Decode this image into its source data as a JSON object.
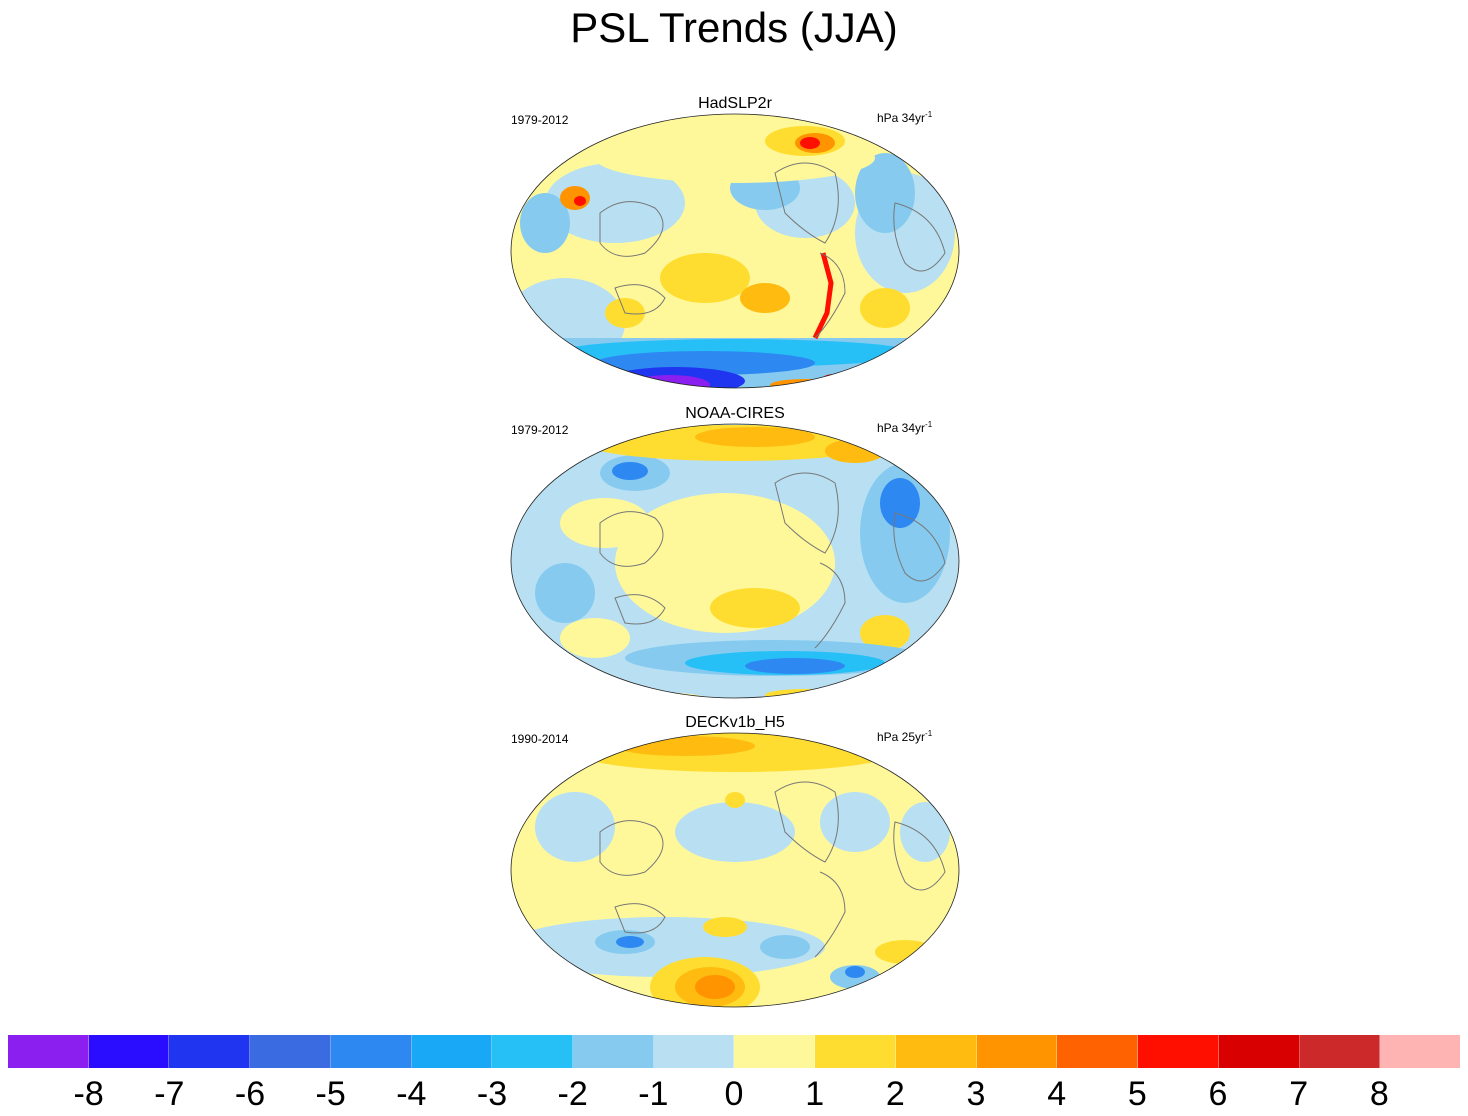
{
  "title": "PSL Trends (JJA)",
  "panels": [
    {
      "name": "HadSLP2r",
      "period": "1979-2012",
      "units_prefix": "hPa 34yr",
      "units_exp": "-1"
    },
    {
      "name": "NOAA-CIRES",
      "period": "1979-2012",
      "units_prefix": "hPa 34yr",
      "units_exp": "-1"
    },
    {
      "name": "DECKv1b_H5",
      "period": "1990-2014",
      "units_prefix": "hPa 25yr",
      "units_exp": "-1"
    }
  ],
  "colorbar": {
    "colors": [
      "#8a1ff0",
      "#2a0dff",
      "#1f35f0",
      "#3a6be0",
      "#2e88f2",
      "#18a8f6",
      "#26c0f7",
      "#86cbef",
      "#b8e0f2",
      "#fff89a",
      "#ffdd30",
      "#ffbb10",
      "#ff9300",
      "#ff6200",
      "#ff0f00",
      "#d80000",
      "#cc2a2a",
      "#ffb4b4"
    ],
    "labels": [
      "-8",
      "-7",
      "-6",
      "-5",
      "-4",
      "-3",
      "-2",
      "-1",
      "0",
      "1",
      "2",
      "3",
      "4",
      "5",
      "6",
      "7",
      "8"
    ]
  }
}
